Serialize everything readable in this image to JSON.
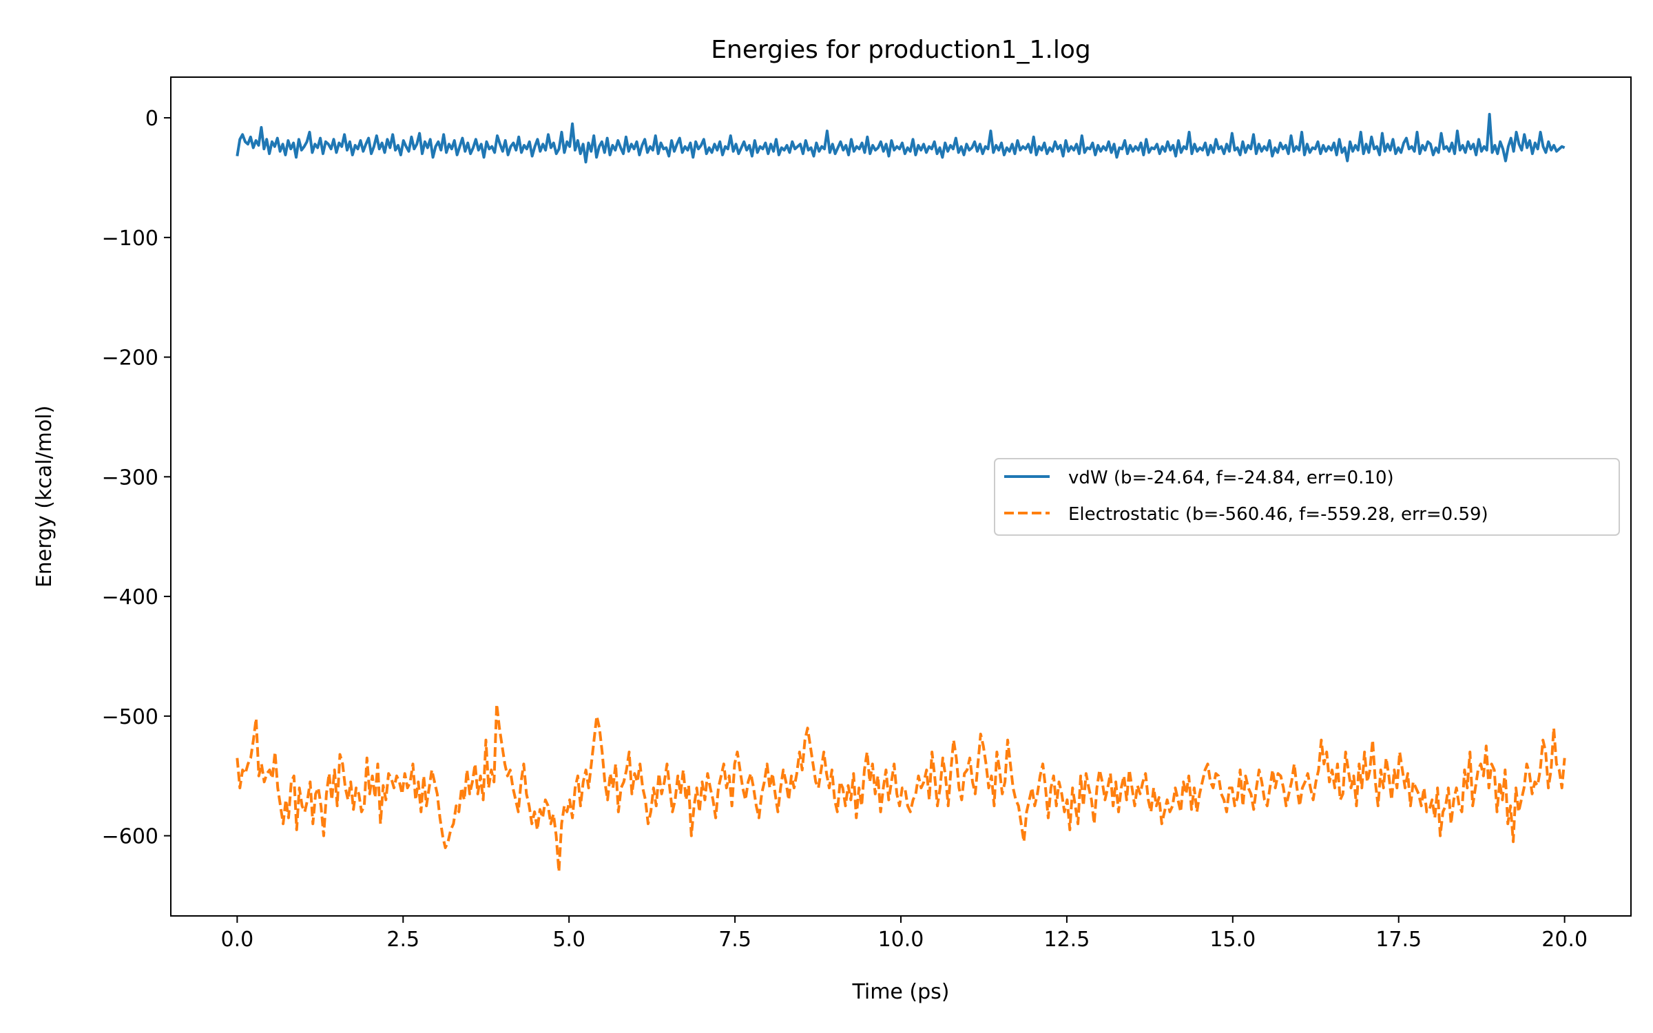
{
  "chart_data": {
    "type": "line",
    "title": "Energies for production1_1.log",
    "xlabel": "Time (ps)",
    "ylabel": "Energy (kcal/mol)",
    "xlim": [
      -1.0,
      21.0
    ],
    "ylim": [
      -667,
      34
    ],
    "xticks": [
      0.0,
      2.5,
      5.0,
      7.5,
      10.0,
      12.5,
      15.0,
      17.5,
      20.0
    ],
    "xtick_labels": [
      "0.0",
      "2.5",
      "5.0",
      "7.5",
      "10.0",
      "12.5",
      "15.0",
      "17.5",
      "20.0"
    ],
    "yticks": [
      0,
      -100,
      -200,
      -300,
      -400,
      -500,
      -600
    ],
    "ytick_labels": [
      "0",
      "−100",
      "−200",
      "−300",
      "−400",
      "−500",
      "−600"
    ],
    "legend_position": "center-right",
    "series": [
      {
        "name": "vdW",
        "label": "vdW (b=-24.64, f=-24.84, err=0.10)",
        "color": "#1f77b4",
        "style": "solid",
        "x_start": 0.0,
        "x_end": 20.0,
        "values": [
          -32,
          -18,
          -14,
          -20,
          -22,
          -16,
          -25,
          -19,
          -23,
          -8,
          -26,
          -18,
          -30,
          -20,
          -24,
          -17,
          -28,
          -22,
          -31,
          -19,
          -26,
          -21,
          -33,
          -18,
          -27,
          -24,
          -20,
          -12,
          -29,
          -22,
          -25,
          -17,
          -30,
          -20,
          -22,
          -26,
          -18,
          -29,
          -21,
          -24,
          -14,
          -27,
          -20,
          -31,
          -23,
          -26,
          -19,
          -28,
          -22,
          -17,
          -30,
          -24,
          -15,
          -26,
          -21,
          -29,
          -18,
          -25,
          -14,
          -27,
          -23,
          -31,
          -19,
          -24,
          -28,
          -16,
          -26,
          -22,
          -13,
          -30,
          -20,
          -25,
          -18,
          -33,
          -24,
          -20,
          -27,
          -14,
          -29,
          -22,
          -26,
          -19,
          -31,
          -24,
          -17,
          -28,
          -21,
          -30,
          -25,
          -18,
          -27,
          -22,
          -33,
          -20,
          -26,
          -24,
          -29,
          -15,
          -22,
          -28,
          -19,
          -31,
          -24,
          -21,
          -27,
          -16,
          -29,
          -23,
          -26,
          -20,
          -32,
          -24,
          -18,
          -28,
          -22,
          -27,
          -14,
          -25,
          -21,
          -30,
          -26,
          -12,
          -29,
          -20,
          -24,
          -5,
          -27,
          -19,
          -30,
          -22,
          -37,
          -21,
          -28,
          -15,
          -33,
          -24,
          -20,
          -29,
          -17,
          -31,
          -23,
          -27,
          -19,
          -25,
          -30,
          -16,
          -28,
          -22,
          -26,
          -20,
          -31,
          -23,
          -18,
          -29,
          -24,
          -27,
          -15,
          -30,
          -21,
          -26,
          -25,
          -32,
          -19,
          -28,
          -22,
          -17,
          -29,
          -24,
          -27,
          -21,
          -33,
          -20,
          -26,
          -23,
          -18,
          -30,
          -25,
          -29,
          -22,
          -27,
          -20,
          -31,
          -24,
          -26,
          -15,
          -28,
          -22,
          -30,
          -25,
          -20,
          -27,
          -23,
          -32,
          -19,
          -29,
          -24,
          -26,
          -21,
          -30,
          -22,
          -28,
          -18,
          -31,
          -25,
          -27,
          -23,
          -29,
          -20,
          -26,
          -24,
          -22,
          -30,
          -19,
          -27,
          -25,
          -32,
          -21,
          -28,
          -24,
          -26,
          -11,
          -29,
          -22,
          -30,
          -25,
          -20,
          -27,
          -23,
          -31,
          -18,
          -28,
          -24,
          -26,
          -21,
          -29,
          -16,
          -30,
          -23,
          -27,
          -25,
          -20,
          -28,
          -22,
          -32,
          -19,
          -27,
          -24,
          -26,
          -21,
          -30,
          -25,
          -28,
          -18,
          -31,
          -23,
          -27,
          -22,
          -29,
          -24,
          -26,
          -20,
          -30,
          -25,
          -33,
          -21,
          -28,
          -23,
          -26,
          -17,
          -29,
          -24,
          -31,
          -22,
          -27,
          -25,
          -20,
          -28,
          -22,
          -30,
          -24,
          -26,
          -11,
          -29,
          -23,
          -27,
          -21,
          -31,
          -25,
          -28,
          -22,
          -30,
          -19,
          -27,
          -24,
          -26,
          -22,
          -29,
          -16,
          -31,
          -24,
          -27,
          -21,
          -30,
          -25,
          -28,
          -20,
          -26,
          -23,
          -32,
          -19,
          -28,
          -24,
          -27,
          -22,
          -30,
          -15,
          -29,
          -25,
          -26,
          -21,
          -31,
          -23,
          -28,
          -24,
          -27,
          -20,
          -29,
          -22,
          -33,
          -25,
          -26,
          -19,
          -30,
          -23,
          -28,
          -24,
          -27,
          -21,
          -31,
          -18,
          -29,
          -25,
          -26,
          -22,
          -30,
          -24,
          -28,
          -20,
          -27,
          -23,
          -32,
          -19,
          -29,
          -24,
          -26,
          -12,
          -30,
          -22,
          -28,
          -25,
          -27,
          -21,
          -31,
          -23,
          -29,
          -18,
          -26,
          -24,
          -30,
          -22,
          -28,
          -13,
          -27,
          -25,
          -31,
          -20,
          -29,
          -23,
          -26,
          -14,
          -30,
          -22,
          -28,
          -24,
          -27,
          -19,
          -32,
          -25,
          -29,
          -21,
          -26,
          -23,
          -30,
          -15,
          -28,
          -24,
          -27,
          -12,
          -31,
          -22,
          -29,
          -25,
          -26,
          -20,
          -30,
          -23,
          -28,
          -24,
          -27,
          -21,
          -31,
          -18,
          -29,
          -25,
          -36,
          -20,
          -28,
          -23,
          -27,
          -12,
          -30,
          -22,
          -29,
          -16,
          -26,
          -24,
          -31,
          -13,
          -28,
          -22,
          -27,
          -18,
          -30,
          -25,
          -29,
          -21,
          -17,
          -26,
          -24,
          -28,
          -12,
          -30,
          -23,
          -27,
          -20,
          -22,
          -31,
          -25,
          -29,
          -13,
          -26,
          -24,
          -28,
          -21,
          -30,
          -11,
          -27,
          -23,
          -29,
          -20,
          -26,
          -22,
          -31,
          -18,
          -28,
          -24,
          -27,
          3,
          -29,
          -23,
          -30,
          -20,
          -26,
          -36,
          -24,
          -17,
          -28,
          -12,
          -22,
          -27,
          -14,
          -25,
          -19,
          -30,
          -21,
          -26,
          -12,
          -24,
          -29,
          -20,
          -27,
          -23,
          -28,
          -26,
          -24,
          -25
        ]
      },
      {
        "name": "Electrostatic",
        "label": "Electrostatic (b=-560.46, f=-559.28, err=0.59)",
        "color": "#ff7f0e",
        "style": "dashed",
        "x_start": 0.0,
        "x_end": 20.0,
        "values": [
          -535,
          -560,
          -545,
          -548,
          -540,
          -535,
          -520,
          -502,
          -550,
          -540,
          -555,
          -548,
          -545,
          -552,
          -530,
          -560,
          -575,
          -590,
          -570,
          -585,
          -555,
          -550,
          -595,
          -560,
          -575,
          -580,
          -570,
          -555,
          -590,
          -565,
          -560,
          -575,
          -600,
          -565,
          -548,
          -570,
          -545,
          -575,
          -532,
          -540,
          -560,
          -570,
          -555,
          -578,
          -560,
          -565,
          -580,
          -575,
          -535,
          -565,
          -550,
          -568,
          -540,
          -590,
          -558,
          -570,
          -548,
          -552,
          -560,
          -550,
          -555,
          -565,
          -548,
          -560,
          -555,
          -540,
          -570,
          -555,
          -580,
          -550,
          -575,
          -560,
          -545,
          -555,
          -565,
          -585,
          -600,
          -610,
          -605,
          -595,
          -590,
          -575,
          -580,
          -560,
          -570,
          -545,
          -565,
          -555,
          -540,
          -565,
          -550,
          -570,
          -520,
          -560,
          -545,
          -555,
          -490,
          -510,
          -525,
          -540,
          -550,
          -545,
          -560,
          -570,
          -580,
          -555,
          -540,
          -565,
          -575,
          -590,
          -580,
          -595,
          -578,
          -585,
          -570,
          -575,
          -590,
          -582,
          -600,
          -630,
          -590,
          -575,
          -580,
          -570,
          -585,
          -560,
          -550,
          -575,
          -555,
          -545,
          -560,
          -540,
          -520,
          -500,
          -510,
          -530,
          -555,
          -570,
          -548,
          -560,
          -540,
          -580,
          -560,
          -555,
          -545,
          -530,
          -565,
          -548,
          -555,
          -540,
          -560,
          -570,
          -590,
          -580,
          -560,
          -575,
          -548,
          -565,
          -555,
          -540,
          -560,
          -580,
          -570,
          -550,
          -565,
          -545,
          -570,
          -558,
          -600,
          -575,
          -560,
          -580,
          -555,
          -570,
          -548,
          -560,
          -570,
          -585,
          -560,
          -550,
          -540,
          -560,
          -550,
          -575,
          -540,
          -530,
          -545,
          -560,
          -570,
          -555,
          -548,
          -560,
          -575,
          -585,
          -565,
          -555,
          -540,
          -560,
          -548,
          -565,
          -580,
          -560,
          -545,
          -555,
          -570,
          -550,
          -560,
          -548,
          -530,
          -545,
          -520,
          -510,
          -525,
          -540,
          -555,
          -560,
          -545,
          -530,
          -548,
          -560,
          -545,
          -570,
          -580,
          -555,
          -560,
          -575,
          -558,
          -570,
          -548,
          -585,
          -560,
          -575,
          -545,
          -530,
          -555,
          -540,
          -565,
          -550,
          -580,
          -560,
          -545,
          -570,
          -555,
          -540,
          -565,
          -575,
          -560,
          -560,
          -575,
          -580,
          -570,
          -565,
          -550,
          -560,
          -555,
          -545,
          -570,
          -530,
          -550,
          -575,
          -560,
          -535,
          -550,
          -575,
          -545,
          -520,
          -535,
          -560,
          -570,
          -548,
          -545,
          -535,
          -555,
          -565,
          -540,
          -515,
          -525,
          -540,
          -560,
          -550,
          -575,
          -530,
          -545,
          -565,
          -555,
          -520,
          -540,
          -560,
          -570,
          -575,
          -590,
          -605,
          -580,
          -570,
          -560,
          -575,
          -565,
          -550,
          -540,
          -560,
          -585,
          -560,
          -550,
          -575,
          -555,
          -565,
          -580,
          -570,
          -595,
          -560,
          -575,
          -590,
          -550,
          -575,
          -548,
          -560,
          -570,
          -590,
          -560,
          -545,
          -555,
          -570,
          -560,
          -548,
          -575,
          -555,
          -580,
          -560,
          -550,
          -570,
          -545,
          -560,
          -575,
          -558,
          -565,
          -555,
          -548,
          -570,
          -580,
          -560,
          -575,
          -568,
          -590,
          -580,
          -570,
          -580,
          -575,
          -560,
          -570,
          -580,
          -555,
          -565,
          -550,
          -578,
          -560,
          -580,
          -565,
          -555,
          -545,
          -540,
          -555,
          -560,
          -548,
          -550,
          -565,
          -570,
          -580,
          -560,
          -560,
          -575,
          -568,
          -545,
          -575,
          -550,
          -560,
          -565,
          -578,
          -560,
          -545,
          -555,
          -570,
          -575,
          -560,
          -545,
          -560,
          -548,
          -550,
          -560,
          -575,
          -565,
          -555,
          -540,
          -560,
          -575,
          -560,
          -555,
          -548,
          -560,
          -570,
          -555,
          -545,
          -520,
          -540,
          -530,
          -555,
          -545,
          -560,
          -540,
          -570,
          -565,
          -530,
          -545,
          -560,
          -550,
          -575,
          -540,
          -560,
          -530,
          -555,
          -545,
          -520,
          -555,
          -575,
          -545,
          -560,
          -535,
          -550,
          -570,
          -545,
          -560,
          -530,
          -545,
          -560,
          -548,
          -575,
          -555,
          -560,
          -565,
          -575,
          -560,
          -580,
          -578,
          -570,
          -585,
          -560,
          -600,
          -580,
          -575,
          -560,
          -590,
          -570,
          -560,
          -575,
          -580,
          -545,
          -560,
          -530,
          -575,
          -560,
          -545,
          -540,
          -550,
          -525,
          -560,
          -540,
          -545,
          -580,
          -555,
          -570,
          -545,
          -590,
          -575,
          -605,
          -560,
          -580,
          -570,
          -560,
          -540,
          -548,
          -565,
          -555,
          -558,
          -545,
          -520,
          -530,
          -560,
          -545,
          -510,
          -540,
          -545,
          -560,
          -535
        ]
      }
    ]
  }
}
